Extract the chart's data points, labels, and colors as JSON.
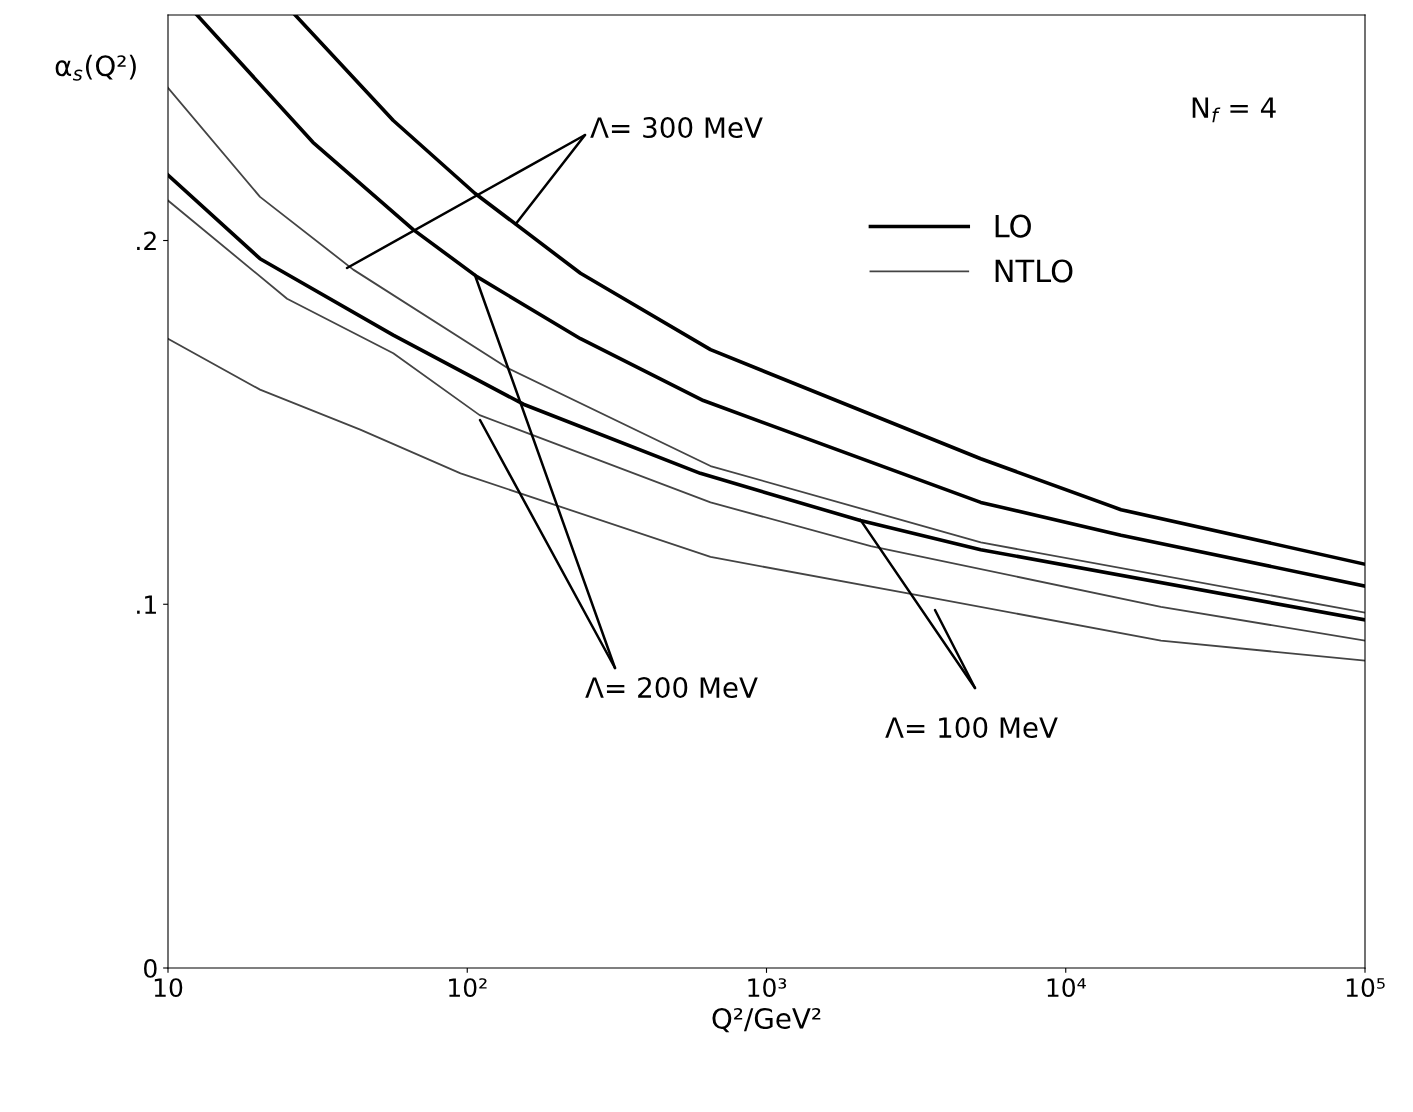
{
  "chart_data": {
    "type": "line",
    "xlabel": "Q²/GeV²",
    "ylabel": "α$_{s}$(Q²)",
    "log": "x",
    "xlim": [
      10,
      100000
    ],
    "ylim": [
      0,
      0.262
    ],
    "xticks": [
      {
        "value": 10,
        "label": "10"
      },
      {
        "value": 100,
        "label": "10²"
      },
      {
        "value": 1000,
        "label": "10³"
      },
      {
        "value": 10000,
        "label": "10⁴"
      },
      {
        "value": 100000,
        "label": "10⁵"
      }
    ],
    "yticks": [
      {
        "value": 0,
        "label": "0"
      },
      {
        "value": 0.1,
        "label": ".1"
      },
      {
        "value": 0.2,
        "label": ".2"
      }
    ],
    "grid": false,
    "legend": "top right",
    "marker": "none",
    "line_style": "solid",
    "annotations": [
      "N$_{f}$ = 4",
      {
        "text": "Λ= 300 MeV",
        "x": 145,
        "y": 0.2045
      },
      {
        "text": "Λ= 200 MeV",
        "x": 106,
        "y": 0.1906
      },
      {
        "text": "Λ= 100 MeV",
        "x": 2060,
        "y": 0.1232
      }
    ],
    "series": [
      {
        "name": "LO",
        "color": "#000000",
        "x": [
          26.6,
          56.6,
          106,
          239,
          650,
          5200,
          15300,
          100000
        ],
        "values": [
          0.262,
          0.233,
          0.213,
          0.191,
          0.17,
          0.14,
          0.126,
          0.111
        ]
      },
      {
        "color": "#000000",
        "x": [
          12.5,
          30.5,
          66,
          108,
          239,
          615,
          5200,
          15300,
          100000
        ],
        "values": [
          0.262,
          0.227,
          0.203,
          0.19,
          0.173,
          0.156,
          0.128,
          0.119,
          0.105
        ]
      },
      {
        "color": "#000000",
        "x": [
          10,
          20.3,
          56.6,
          154,
          601,
          2060,
          5200,
          100000
        ],
        "values": [
          0.218,
          0.195,
          0.174,
          0.155,
          0.136,
          0.123,
          0.115,
          0.0957
        ]
      },
      {
        "name": "NTLO",
        "color": "#444444",
        "x": [
          10,
          20.3,
          41.6,
          136,
          650,
          5200,
          100000
        ],
        "values": [
          0.242,
          0.212,
          0.192,
          0.165,
          0.138,
          0.117,
          0.0977
        ]
      },
      {
        "color": "#444444",
        "x": [
          10,
          25,
          56.6,
          110,
          650,
          2230,
          20800,
          100000
        ],
        "values": [
          0.211,
          0.184,
          0.169,
          0.152,
          0.128,
          0.116,
          0.0993,
          0.09
        ]
      },
      {
        "color": "#444444",
        "x": [
          10,
          20.3,
          43.9,
          95,
          650,
          2970,
          20800,
          100000
        ],
        "values": [
          0.173,
          0.159,
          0.148,
          0.136,
          0.113,
          0.103,
          0.09,
          0.0845
        ]
      }
    ]
  }
}
